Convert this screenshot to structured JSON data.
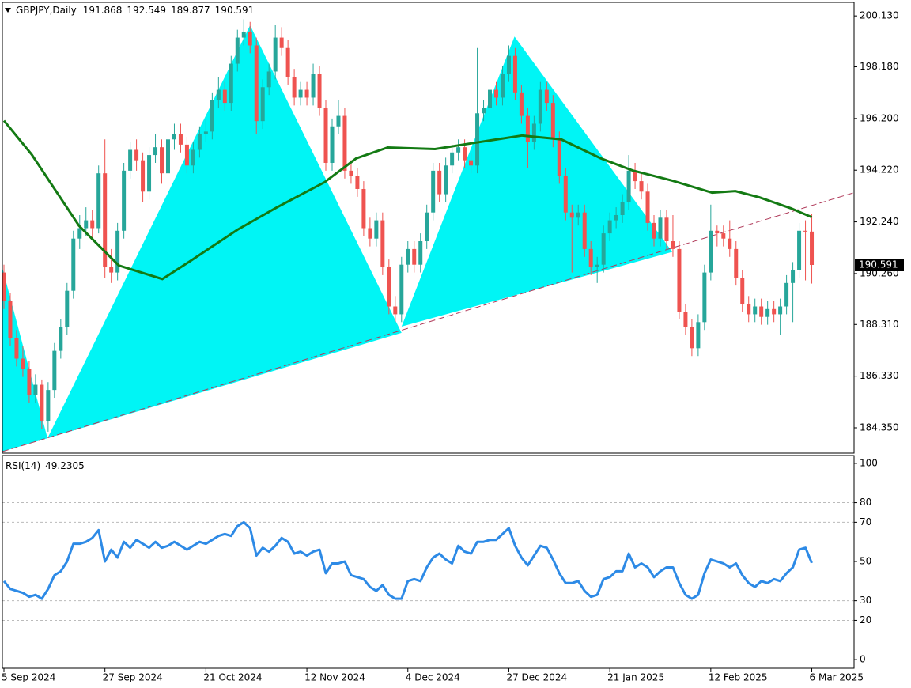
{
  "chart_data": [
    {
      "type": "candlestick",
      "symbol": "GBPJPY,Daily",
      "categories": [
        "5 Sep 2024",
        null,
        null,
        null,
        null,
        null,
        null,
        null,
        null,
        null,
        null,
        null,
        null,
        null,
        null,
        null,
        "27 Sep 2024",
        null,
        null,
        null,
        null,
        null,
        null,
        null,
        null,
        null,
        null,
        null,
        null,
        null,
        null,
        null,
        "21 Oct 2024",
        null,
        null,
        null,
        null,
        null,
        null,
        null,
        null,
        null,
        null,
        null,
        null,
        null,
        null,
        null,
        "12 Nov 2024",
        null,
        null,
        null,
        null,
        null,
        null,
        null,
        null,
        null,
        null,
        null,
        null,
        null,
        null,
        null,
        "4 Dec 2024",
        null,
        null,
        null,
        null,
        null,
        null,
        null,
        null,
        null,
        null,
        null,
        null,
        null,
        null,
        null,
        "27 Dec 2024",
        null,
        null,
        null,
        null,
        null,
        null,
        null,
        null,
        null,
        null,
        null,
        null,
        null,
        null,
        null,
        "21 Jan 2025",
        null,
        null,
        null,
        null,
        null,
        null,
        null,
        null,
        null,
        null,
        null,
        null,
        null,
        null,
        null,
        "12 Feb 2025",
        null,
        null,
        null,
        null,
        null,
        null,
        null,
        null,
        null,
        null,
        null,
        null,
        null,
        null,
        null,
        "6 Mar 2025"
      ],
      "ohlc": [
        [
          190.3,
          190.6,
          188.9,
          189.2
        ],
        [
          189.2,
          189.5,
          187.5,
          187.8
        ],
        [
          187.8,
          188.1,
          186.7,
          187.0
        ],
        [
          187.0,
          187.5,
          186.3,
          186.6
        ],
        [
          186.6,
          186.9,
          185.3,
          185.6
        ],
        [
          185.6,
          186.4,
          185.3,
          186.0
        ],
        [
          186.0,
          186.2,
          184.3,
          184.6
        ],
        [
          184.6,
          186.1,
          184.2,
          185.8
        ],
        [
          185.8,
          187.6,
          185.5,
          187.3
        ],
        [
          187.3,
          188.5,
          187.0,
          188.2
        ],
        [
          188.2,
          189.9,
          187.9,
          189.6
        ],
        [
          189.6,
          191.9,
          189.3,
          191.6
        ],
        [
          191.6,
          192.5,
          191.2,
          192.0
        ],
        [
          192.0,
          192.8,
          191.7,
          192.3
        ],
        [
          192.3,
          192.7,
          191.6,
          192.0
        ],
        [
          192.0,
          194.4,
          191.8,
          194.1
        ],
        [
          194.1,
          195.4,
          190.1,
          190.5
        ],
        [
          190.5,
          191.2,
          189.9,
          190.3
        ],
        [
          190.3,
          192.2,
          190.0,
          191.9
        ],
        [
          191.9,
          194.5,
          191.6,
          194.2
        ],
        [
          194.2,
          195.3,
          193.9,
          195.0
        ],
        [
          195.0,
          195.4,
          194.2,
          194.6
        ],
        [
          194.6,
          194.9,
          193.0,
          193.4
        ],
        [
          193.4,
          195.1,
          193.1,
          194.8
        ],
        [
          194.8,
          195.6,
          194.5,
          195.1
        ],
        [
          195.1,
          195.4,
          193.7,
          194.1
        ],
        [
          194.1,
          195.7,
          193.8,
          195.4
        ],
        [
          195.4,
          196.0,
          195.0,
          195.6
        ],
        [
          195.6,
          196.0,
          194.9,
          195.2
        ],
        [
          195.2,
          195.5,
          194.1,
          194.4
        ],
        [
          194.4,
          195.3,
          194.1,
          195.0
        ],
        [
          195.0,
          195.9,
          194.7,
          195.6
        ],
        [
          195.6,
          196.2,
          195.3,
          195.7
        ],
        [
          195.7,
          197.2,
          195.4,
          196.9
        ],
        [
          196.9,
          197.8,
          196.6,
          197.3
        ],
        [
          197.3,
          197.6,
          196.5,
          196.8
        ],
        [
          196.8,
          198.6,
          196.5,
          198.3
        ],
        [
          198.3,
          199.6,
          198.0,
          199.3
        ],
        [
          199.3,
          200.0,
          199.0,
          199.5
        ],
        [
          199.5,
          199.9,
          198.7,
          199.0
        ],
        [
          199.0,
          199.3,
          195.6,
          196.1
        ],
        [
          196.1,
          197.7,
          195.8,
          197.4
        ],
        [
          197.4,
          198.3,
          197.1,
          198.0
        ],
        [
          198.0,
          199.8,
          197.7,
          199.3
        ],
        [
          199.3,
          199.7,
          198.6,
          198.9
        ],
        [
          198.9,
          199.2,
          197.5,
          197.8
        ],
        [
          197.8,
          198.1,
          196.7,
          197.0
        ],
        [
          197.0,
          197.6,
          196.7,
          197.3
        ],
        [
          197.3,
          197.6,
          196.7,
          197.0
        ],
        [
          197.0,
          198.3,
          196.7,
          197.9
        ],
        [
          197.9,
          198.2,
          196.3,
          196.6
        ],
        [
          196.6,
          196.9,
          194.2,
          194.5
        ],
        [
          194.5,
          196.2,
          194.2,
          195.9
        ],
        [
          195.9,
          196.9,
          195.6,
          196.3
        ],
        [
          196.3,
          196.6,
          193.9,
          194.2
        ],
        [
          194.2,
          194.6,
          193.7,
          194.0
        ],
        [
          194.0,
          194.3,
          193.2,
          193.5
        ],
        [
          193.5,
          193.8,
          191.7,
          192.0
        ],
        [
          192.0,
          192.4,
          191.3,
          191.6
        ],
        [
          191.6,
          192.6,
          191.3,
          192.3
        ],
        [
          192.3,
          192.6,
          190.2,
          190.5
        ],
        [
          190.5,
          190.8,
          188.7,
          189.0
        ],
        [
          189.0,
          189.4,
          188.4,
          188.7
        ],
        [
          188.7,
          190.9,
          188.4,
          190.6
        ],
        [
          190.6,
          191.5,
          190.3,
          191.2
        ],
        [
          191.2,
          191.5,
          190.3,
          190.6
        ],
        [
          190.6,
          191.8,
          190.3,
          191.5
        ],
        [
          191.5,
          192.9,
          191.2,
          192.6
        ],
        [
          192.6,
          194.5,
          192.3,
          194.2
        ],
        [
          194.2,
          194.5,
          193.0,
          193.3
        ],
        [
          193.3,
          194.7,
          193.0,
          194.4
        ],
        [
          194.4,
          195.2,
          194.1,
          194.9
        ],
        [
          194.9,
          195.4,
          194.6,
          195.1
        ],
        [
          195.1,
          195.4,
          194.3,
          194.6
        ],
        [
          194.6,
          194.9,
          194.1,
          194.4
        ],
        [
          194.4,
          198.9,
          194.1,
          196.4
        ],
        [
          196.4,
          196.9,
          196.1,
          196.6
        ],
        [
          196.6,
          197.6,
          196.3,
          197.3
        ],
        [
          197.3,
          197.6,
          196.7,
          197.0
        ],
        [
          197.0,
          198.2,
          196.7,
          197.9
        ],
        [
          197.9,
          199.0,
          197.6,
          198.6
        ],
        [
          198.6,
          198.9,
          196.9,
          197.2
        ],
        [
          197.2,
          197.5,
          196.0,
          196.3
        ],
        [
          196.3,
          196.6,
          194.3,
          195.3
        ],
        [
          195.3,
          196.3,
          195.0,
          196.0
        ],
        [
          196.0,
          197.6,
          195.7,
          197.3
        ],
        [
          197.3,
          197.6,
          196.5,
          196.8
        ],
        [
          196.8,
          197.1,
          195.1,
          195.4
        ],
        [
          195.4,
          195.7,
          193.7,
          194.0
        ],
        [
          194.0,
          194.3,
          192.3,
          192.6
        ],
        [
          192.6,
          192.9,
          190.3,
          192.4
        ],
        [
          192.4,
          192.9,
          192.1,
          192.6
        ],
        [
          192.6,
          192.9,
          190.9,
          191.2
        ],
        [
          191.2,
          191.5,
          190.2,
          190.5
        ],
        [
          190.5,
          190.9,
          189.9,
          190.6
        ],
        [
          190.6,
          192.1,
          190.3,
          191.8
        ],
        [
          191.8,
          192.6,
          191.5,
          192.3
        ],
        [
          192.3,
          192.8,
          192.0,
          192.5
        ],
        [
          192.5,
          193.3,
          192.2,
          193.0
        ],
        [
          193.0,
          194.8,
          192.7,
          194.2
        ],
        [
          194.2,
          194.5,
          193.5,
          193.8
        ],
        [
          193.8,
          194.1,
          193.1,
          193.4
        ],
        [
          193.4,
          193.7,
          191.9,
          192.2
        ],
        [
          192.2,
          192.5,
          191.3,
          191.6
        ],
        [
          191.6,
          192.7,
          191.3,
          192.4
        ],
        [
          192.4,
          192.7,
          191.2,
          191.5
        ],
        [
          191.5,
          192.5,
          190.9,
          191.2
        ],
        [
          191.2,
          191.5,
          188.5,
          188.8
        ],
        [
          188.8,
          189.1,
          187.9,
          188.2
        ],
        [
          188.2,
          188.5,
          187.1,
          187.4
        ],
        [
          187.4,
          188.7,
          187.1,
          188.4
        ],
        [
          188.4,
          190.6,
          188.1,
          190.3
        ],
        [
          190.3,
          192.9,
          190.0,
          191.9
        ],
        [
          191.9,
          192.1,
          191.3,
          191.8
        ],
        [
          191.8,
          192.1,
          191.3,
          191.6
        ],
        [
          191.6,
          192.3,
          190.9,
          191.2
        ],
        [
          191.2,
          191.5,
          189.8,
          190.1
        ],
        [
          190.1,
          190.4,
          188.8,
          189.1
        ],
        [
          189.1,
          189.4,
          188.4,
          188.7
        ],
        [
          188.7,
          189.3,
          188.4,
          189.0
        ],
        [
          189.0,
          189.3,
          188.3,
          188.6
        ],
        [
          188.6,
          189.2,
          188.3,
          188.9
        ],
        [
          188.9,
          189.2,
          188.4,
          188.7
        ],
        [
          188.7,
          189.3,
          187.9,
          189.0
        ],
        [
          189.0,
          190.2,
          188.7,
          189.9
        ],
        [
          189.9,
          190.7,
          188.4,
          190.4
        ],
        [
          190.4,
          192.2,
          190.1,
          191.9
        ],
        [
          191.9,
          192.3,
          190.0,
          191.868
        ],
        [
          191.868,
          192.549,
          189.877,
          190.591
        ]
      ],
      "up_color": "#26a69a",
      "down_color": "#ef5350",
      "xlim": [
        -0.25,
        134.7
      ],
      "ylim": [
        183.38,
        200.65
      ],
      "yticks": [
        {
          "value": 200.13,
          "label": "200.130"
        },
        {
          "value": 198.18,
          "label": "198.180"
        },
        {
          "value": 196.2,
          "label": "196.200"
        },
        {
          "value": 194.22,
          "label": "194.220"
        },
        {
          "value": 192.24,
          "label": "192.240"
        },
        {
          "value": 190.26,
          "label": "190.260"
        },
        {
          "value": 188.31,
          "label": "188.310"
        },
        {
          "value": 186.33,
          "label": "186.330"
        },
        {
          "value": 184.35,
          "label": "184.350"
        }
      ],
      "ma": {
        "color": "#137a13",
        "x": [
          0,
          4.4,
          11.9,
          18.2,
          25.1,
          29.4,
          37,
          43.2,
          50.8,
          55.8,
          60.8,
          68.3,
          74.6,
          82.1,
          88.3,
          94.6,
          99.6,
          105.9,
          112.2,
          115.9,
          119.7,
          124.7,
          128
        ],
        "values": [
          196.12,
          194.82,
          192.09,
          190.57,
          190.05,
          190.72,
          191.94,
          192.79,
          193.76,
          194.67,
          195.09,
          195.03,
          195.27,
          195.55,
          195.4,
          194.67,
          194.21,
          193.82,
          193.36,
          193.42,
          193.18,
          192.76,
          192.42
        ]
      },
      "patterns": [
        {
          "color": "#00f5f5",
          "points": [
            [
              -0.25,
              190.48
            ],
            [
              6.9,
              183.95
            ],
            [
              -0.25,
              183.44
            ]
          ]
        },
        {
          "color": "#00f5f5",
          "points": [
            [
              6.9,
              183.95
            ],
            [
              39.0,
              199.77
            ],
            [
              63.0,
              187.99
            ]
          ]
        },
        {
          "color": "#00f5f5",
          "points": [
            [
              63.0,
              188.23
            ],
            [
              80.9,
              199.34
            ],
            [
              105.9,
              191.09
            ]
          ]
        }
      ],
      "trendline": {
        "color": "#b03a5a",
        "points": [
          [
            -0.25,
            183.44
          ],
          [
            134.7,
            193.36
          ]
        ]
      }
    },
    {
      "type": "line",
      "title": "RSI(14)",
      "color": "#2d8ae6",
      "values": [
        40,
        36,
        35,
        34,
        32,
        33,
        31,
        36,
        43,
        45,
        50,
        59,
        59,
        60,
        62,
        66,
        50,
        56,
        52,
        60,
        57,
        61,
        59,
        57,
        60,
        57,
        58,
        60,
        58,
        56,
        58,
        60,
        59,
        61,
        63,
        64,
        63,
        68,
        70,
        67,
        53,
        57,
        55,
        58,
        62,
        60,
        54,
        55,
        53,
        55,
        56,
        44,
        49,
        49,
        50,
        43,
        42,
        41,
        37,
        35,
        38,
        33,
        31,
        31,
        40,
        41,
        40,
        47,
        52,
        54,
        51,
        49,
        58,
        55,
        54,
        60,
        60,
        61,
        61,
        64,
        67,
        58,
        52,
        48,
        53,
        58,
        57,
        51,
        44,
        39,
        39,
        40,
        35,
        32,
        33,
        41,
        42,
        45,
        45,
        54,
        47,
        49,
        47,
        42,
        45,
        47,
        47,
        39,
        33,
        31,
        33,
        44,
        51,
        50,
        49,
        47,
        49,
        43,
        39,
        37,
        40,
        39,
        41,
        40,
        44,
        47,
        56,
        57,
        49.2305
      ],
      "xlim": [
        -0.25,
        134.7
      ],
      "ylim": [
        -4.4,
        104
      ],
      "yticks": [
        0,
        20,
        30,
        50,
        70,
        80,
        100
      ],
      "levels": [
        20,
        30,
        70,
        80
      ]
    }
  ]
}
